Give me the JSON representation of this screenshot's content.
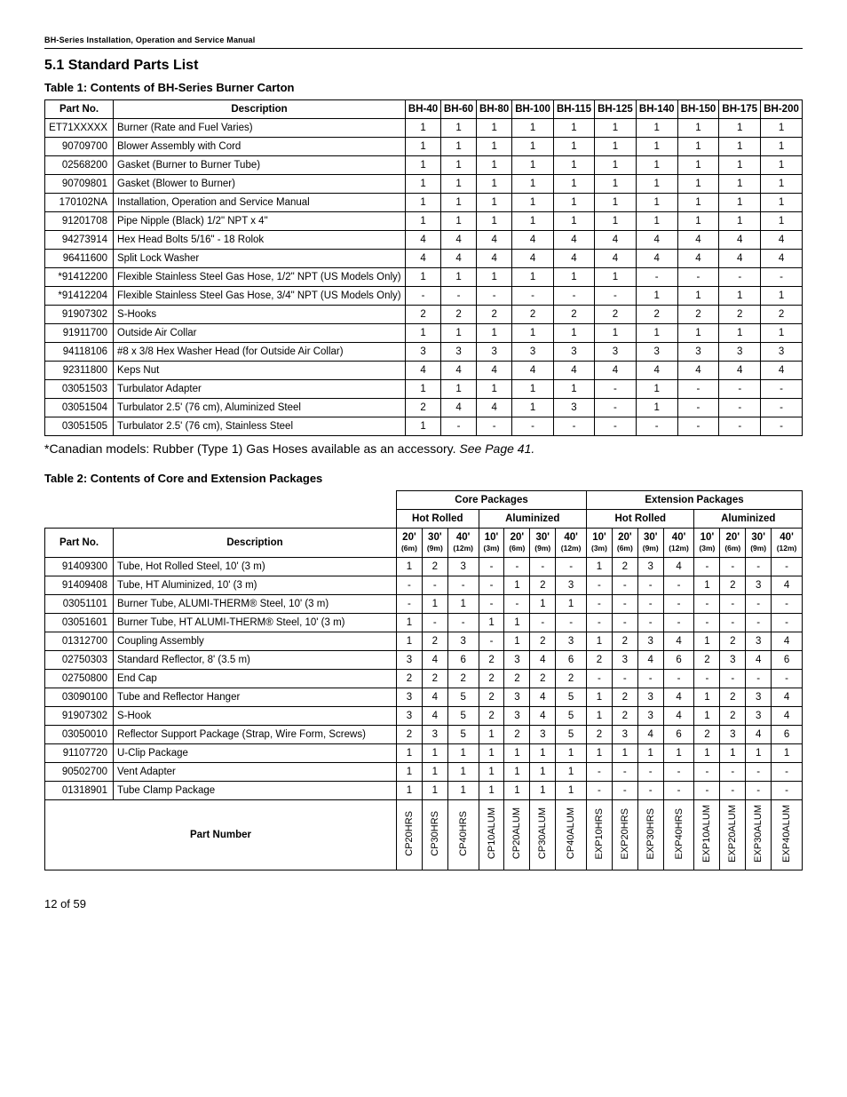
{
  "header": "BH-Series Installation, Operation and Service Manual",
  "section_title": "5.1 Standard Parts List",
  "table1_title": "Table 1: Contents of BH-Series Burner Carton",
  "table1_header": [
    "Part No.",
    "Description",
    "BH-40",
    "BH-60",
    "BH-80",
    "BH-100",
    "BH-115",
    "BH-125",
    "BH-140",
    "BH-150",
    "BH-175",
    "BH-200"
  ],
  "table1_rows": [
    [
      "ET71XXXXX",
      "Burner (Rate and Fuel Varies)",
      "1",
      "1",
      "1",
      "1",
      "1",
      "1",
      "1",
      "1",
      "1",
      "1"
    ],
    [
      "90709700",
      "Blower Assembly with Cord",
      "1",
      "1",
      "1",
      "1",
      "1",
      "1",
      "1",
      "1",
      "1",
      "1"
    ],
    [
      "02568200",
      "Gasket (Burner to Burner Tube)",
      "1",
      "1",
      "1",
      "1",
      "1",
      "1",
      "1",
      "1",
      "1",
      "1"
    ],
    [
      "90709801",
      "Gasket (Blower to Burner)",
      "1",
      "1",
      "1",
      "1",
      "1",
      "1",
      "1",
      "1",
      "1",
      "1"
    ],
    [
      "170102NA",
      "Installation, Operation and Service Manual",
      "1",
      "1",
      "1",
      "1",
      "1",
      "1",
      "1",
      "1",
      "1",
      "1"
    ],
    [
      "91201708",
      "Pipe Nipple (Black) 1/2\" NPT x 4\"",
      "1",
      "1",
      "1",
      "1",
      "1",
      "1",
      "1",
      "1",
      "1",
      "1"
    ],
    [
      "94273914",
      "Hex Head Bolts 5/16\" - 18 Rolok",
      "4",
      "4",
      "4",
      "4",
      "4",
      "4",
      "4",
      "4",
      "4",
      "4"
    ],
    [
      "96411600",
      "Split Lock Washer",
      "4",
      "4",
      "4",
      "4",
      "4",
      "4",
      "4",
      "4",
      "4",
      "4"
    ],
    [
      "*91412200",
      "Flexible Stainless Steel Gas Hose, 1/2\" NPT (US Models Only)",
      "1",
      "1",
      "1",
      "1",
      "1",
      "1",
      "-",
      "-",
      "-",
      "-"
    ],
    [
      "*91412204",
      "Flexible Stainless Steel Gas Hose, 3/4\" NPT (US Models Only)",
      "-",
      "-",
      "-",
      "-",
      "-",
      "-",
      "1",
      "1",
      "1",
      "1"
    ],
    [
      "91907302",
      "S-Hooks",
      "2",
      "2",
      "2",
      "2",
      "2",
      "2",
      "2",
      "2",
      "2",
      "2"
    ],
    [
      "91911700",
      "Outside Air Collar",
      "1",
      "1",
      "1",
      "1",
      "1",
      "1",
      "1",
      "1",
      "1",
      "1"
    ],
    [
      "94118106",
      "#8 x 3/8 Hex Washer Head (for Outside Air Collar)",
      "3",
      "3",
      "3",
      "3",
      "3",
      "3",
      "3",
      "3",
      "3",
      "3"
    ],
    [
      "92311800",
      "Keps Nut",
      "4",
      "4",
      "4",
      "4",
      "4",
      "4",
      "4",
      "4",
      "4",
      "4"
    ],
    [
      "03051503",
      "Turbulator Adapter",
      "1",
      "1",
      "1",
      "1",
      "1",
      "-",
      "1",
      "-",
      "-",
      "-"
    ],
    [
      "03051504",
      "Turbulator 2.5' (76 cm), Aluminized Steel",
      "2",
      "4",
      "4",
      "1",
      "3",
      "-",
      "1",
      "-",
      "-",
      "-"
    ],
    [
      "03051505",
      "Turbulator 2.5' (76 cm), Stainless Steel",
      "1",
      "-",
      "-",
      "-",
      "-",
      "-",
      "-",
      "-",
      "-",
      "-"
    ]
  ],
  "footnote_a": "*Canadian models: Rubber (Type 1) Gas Hoses available as an accessory. ",
  "footnote_b": "See Page 41.",
  "table2_title": "Table 2: Contents of Core and Extension Packages",
  "t2_group_core": "Core Packages",
  "t2_group_ext": "Extension Packages",
  "t2_hot": "Hot Rolled",
  "t2_alum": "Aluminized",
  "t2_header_partno": "Part No.",
  "t2_header_desc": "Description",
  "t2_sizes": [
    "20'",
    "30'",
    "40'",
    "10'",
    "20'",
    "30'",
    "40'",
    "10'",
    "20'",
    "30'",
    "40'",
    "10'",
    "20'",
    "30'",
    "40'"
  ],
  "t2_metric": [
    "(6m)",
    "(9m)",
    "(12m)",
    "(3m)",
    "(6m)",
    "(9m)",
    "(12m)",
    "(3m)",
    "(6m)",
    "(9m)",
    "(12m)",
    "(3m)",
    "(6m)",
    "(9m)",
    "(12m)"
  ],
  "table2_rows": [
    [
      "91409300",
      "Tube, Hot Rolled Steel, 10' (3 m)",
      "1",
      "2",
      "3",
      "-",
      "-",
      "-",
      "-",
      "1",
      "2",
      "3",
      "4",
      "-",
      "-",
      "-",
      "-"
    ],
    [
      "91409408",
      "Tube, HT Aluminized, 10' (3 m)",
      "-",
      "-",
      "-",
      "-",
      "1",
      "2",
      "3",
      "-",
      "-",
      "-",
      "-",
      "1",
      "2",
      "3",
      "4"
    ],
    [
      "03051101",
      "Burner Tube, ALUMI-THERM® Steel, 10' (3 m)",
      "-",
      "1",
      "1",
      "-",
      "-",
      "1",
      "1",
      "-",
      "-",
      "-",
      "-",
      "-",
      "-",
      "-",
      "-"
    ],
    [
      "03051601",
      "Burner Tube, HT ALUMI-THERM® Steel, 10' (3 m)",
      "1",
      "-",
      "-",
      "1",
      "1",
      "-",
      "-",
      "-",
      "-",
      "-",
      "-",
      "-",
      "-",
      "-",
      "-"
    ],
    [
      "01312700",
      "Coupling Assembly",
      "1",
      "2",
      "3",
      "-",
      "1",
      "2",
      "3",
      "1",
      "2",
      "3",
      "4",
      "1",
      "2",
      "3",
      "4"
    ],
    [
      "02750303",
      "Standard Reflector, 8' (3.5 m)",
      "3",
      "4",
      "6",
      "2",
      "3",
      "4",
      "6",
      "2",
      "3",
      "4",
      "6",
      "2",
      "3",
      "4",
      "6"
    ],
    [
      "02750800",
      "End Cap",
      "2",
      "2",
      "2",
      "2",
      "2",
      "2",
      "2",
      "-",
      "-",
      "-",
      "-",
      "-",
      "-",
      "-",
      "-"
    ],
    [
      "03090100",
      "Tube and Reflector Hanger",
      "3",
      "4",
      "5",
      "2",
      "3",
      "4",
      "5",
      "1",
      "2",
      "3",
      "4",
      "1",
      "2",
      "3",
      "4"
    ],
    [
      "91907302",
      "S-Hook",
      "3",
      "4",
      "5",
      "2",
      "3",
      "4",
      "5",
      "1",
      "2",
      "3",
      "4",
      "1",
      "2",
      "3",
      "4"
    ],
    [
      "03050010",
      "Reflector Support Package (Strap, Wire Form, Screws)",
      "2",
      "3",
      "5",
      "1",
      "2",
      "3",
      "5",
      "2",
      "3",
      "4",
      "6",
      "2",
      "3",
      "4",
      "6"
    ],
    [
      "91107720",
      "U-Clip Package",
      "1",
      "1",
      "1",
      "1",
      "1",
      "1",
      "1",
      "1",
      "1",
      "1",
      "1",
      "1",
      "1",
      "1",
      "1"
    ],
    [
      "90502700",
      "Vent Adapter",
      "1",
      "1",
      "1",
      "1",
      "1",
      "1",
      "1",
      "-",
      "-",
      "-",
      "-",
      "-",
      "-",
      "-",
      "-"
    ],
    [
      "01318901",
      "Tube Clamp Package",
      "1",
      "1",
      "1",
      "1",
      "1",
      "1",
      "1",
      "-",
      "-",
      "-",
      "-",
      "-",
      "-",
      "-",
      "-"
    ]
  ],
  "t2_partnumber_label": "Part Number",
  "t2_partnumbers": [
    "CP20HRS",
    "CP30HRS",
    "CP40HRS",
    "CP10ALUM",
    "CP20ALUM",
    "CP30ALUM",
    "CP40ALUM",
    "EXP10HRS",
    "EXP20HRS",
    "EXP30HRS",
    "EXP40HRS",
    "EXP10ALUM",
    "EXP20ALUM",
    "EXP30ALUM",
    "EXP40ALUM"
  ],
  "page_number": "12 of 59"
}
